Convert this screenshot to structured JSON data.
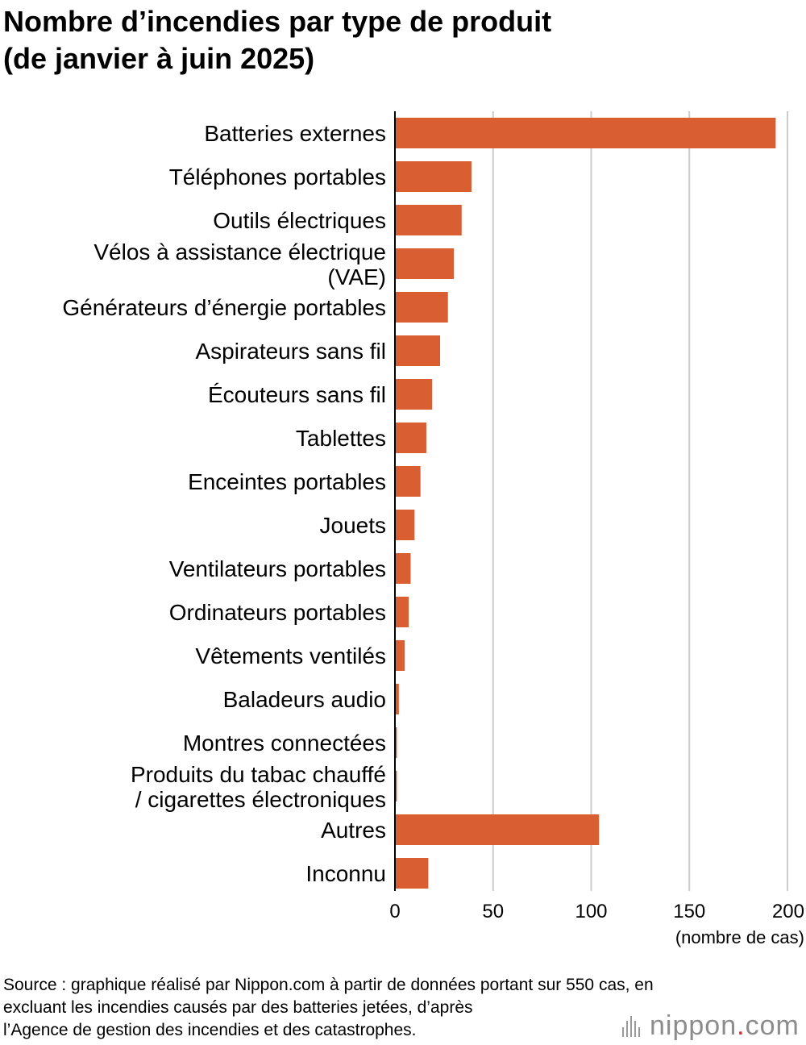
{
  "chart_data": {
    "type": "bar",
    "orientation": "horizontal",
    "title": [
      "Nombre d’incendies par type de produit",
      "(de janvier à juin 2025)"
    ],
    "categories": [
      [
        "Batteries externes"
      ],
      [
        "Téléphones portables"
      ],
      [
        "Outils électriques"
      ],
      [
        "Vélos à assistance électrique",
        "(VAE)"
      ],
      [
        "Générateurs d’énergie portables"
      ],
      [
        "Aspirateurs sans fil"
      ],
      [
        "Écouteurs sans fil"
      ],
      [
        "Tablettes"
      ],
      [
        "Enceintes portables"
      ],
      [
        "Jouets"
      ],
      [
        "Ventilateurs portables"
      ],
      [
        "Ordinateurs portables"
      ],
      [
        "Vêtements ventilés"
      ],
      [
        "Baladeurs audio"
      ],
      [
        "Montres connectées"
      ],
      [
        "Produits du tabac chauffé",
        "/ cigarettes électroniques"
      ],
      [
        "Autres"
      ],
      [
        "Inconnu"
      ]
    ],
    "values": [
      194,
      39,
      34,
      30,
      27,
      23,
      19,
      16,
      13,
      10,
      8,
      7,
      5,
      2,
      1,
      1,
      104,
      17
    ],
    "xlim": [
      0,
      200
    ],
    "xticks": [
      0,
      50,
      100,
      150,
      200
    ],
    "xlabel": "(nombre de cas)",
    "grid": "vertical",
    "bar_color": "#d95f32",
    "grid_color": "#cccccc"
  },
  "source_lines": [
    "Source : graphique réalisé par Nippon.com à partir de données portant sur 550 cas, en",
    "excluant les incendies causés par des batteries jetées, d’après",
    "l’Agence de gestion des incendies et des catastrophes."
  ],
  "logo": {
    "name": "nippon",
    "dot": ".",
    "suffix": "com",
    "icon": "sound-bars-icon"
  }
}
